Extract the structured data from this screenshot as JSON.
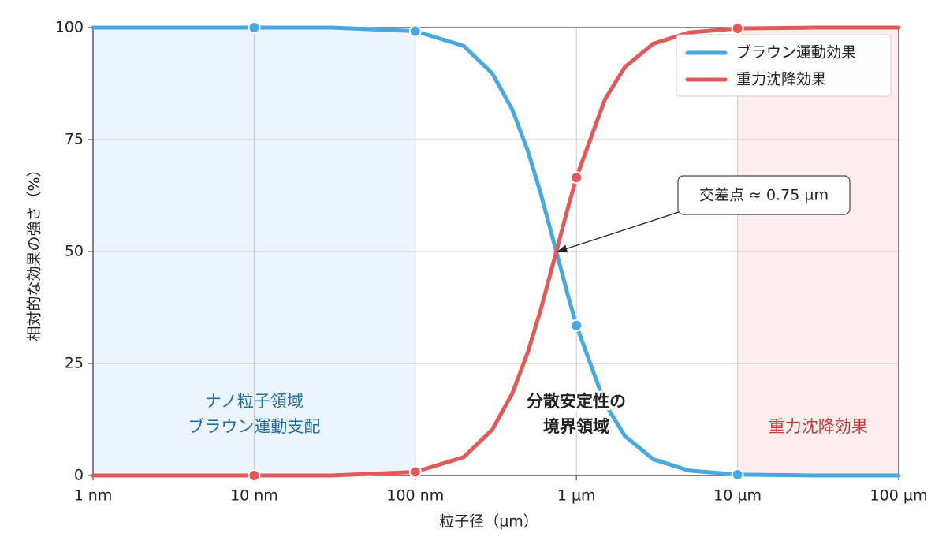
{
  "chart_data": {
    "type": "line",
    "xlabel": "粒子径（µm）",
    "ylabel": "相対的な効果の強さ（%）",
    "log_x": true,
    "grid": true,
    "legend": "upper right",
    "markers": true,
    "x": [
      0.001,
      0.01,
      0.03,
      0.1,
      0.2,
      0.3,
      0.4,
      0.5,
      0.6,
      0.75,
      0.9,
      1,
      1.5,
      2,
      3,
      5,
      10,
      30,
      100
    ],
    "series": [
      {
        "name": "ブラウン運動効果",
        "color": "#4aa8e0",
        "values": [
          100,
          100,
          100,
          99.2,
          95.9,
          89.8,
          81.7,
          72.4,
          63.0,
          50,
          39.3,
          33.5,
          16.1,
          8.8,
          3.6,
          1.1,
          0.2,
          0,
          0
        ]
      },
      {
        "name": "重力沈降効果",
        "color": "#e05a5a",
        "values": [
          0,
          0,
          0,
          0.8,
          4.1,
          10.2,
          18.3,
          27.6,
          37.0,
          50,
          60.7,
          66.5,
          83.9,
          91.2,
          96.4,
          98.9,
          99.8,
          100,
          100
        ]
      }
    ],
    "xlim": [
      0.001,
      100
    ],
    "xticks": [
      {
        "value": 0.001,
        "label": "1 nm"
      },
      {
        "value": 0.01,
        "label": "10 nm"
      },
      {
        "value": 0.1,
        "label": "100 nm"
      },
      {
        "value": 1,
        "label": "1 µm"
      },
      {
        "value": 10,
        "label": "10 µm"
      },
      {
        "value": 100,
        "label": "100 µm"
      }
    ],
    "ylim": [
      0,
      100
    ],
    "yticks": [
      0,
      25,
      50,
      75,
      100
    ],
    "regions": [
      {
        "x": [
          0.001,
          0.1
        ],
        "color": "#eaf3fd",
        "text_color": "#1f6fa3",
        "label_lines": [
          "ナノ粒子領域",
          "ブラウン運動支配"
        ]
      },
      {
        "x": [
          10,
          100
        ],
        "color": "#fdecec",
        "text_color": "#c23b3b",
        "label_lines": [
          "重力沈降効果"
        ]
      }
    ],
    "center_label_lines": [
      "分散安定性の",
      "境界領域"
    ],
    "annotation": {
      "text": "交差点 ≈ 0.75 µm",
      "xy": [
        0.75,
        50
      ]
    }
  }
}
